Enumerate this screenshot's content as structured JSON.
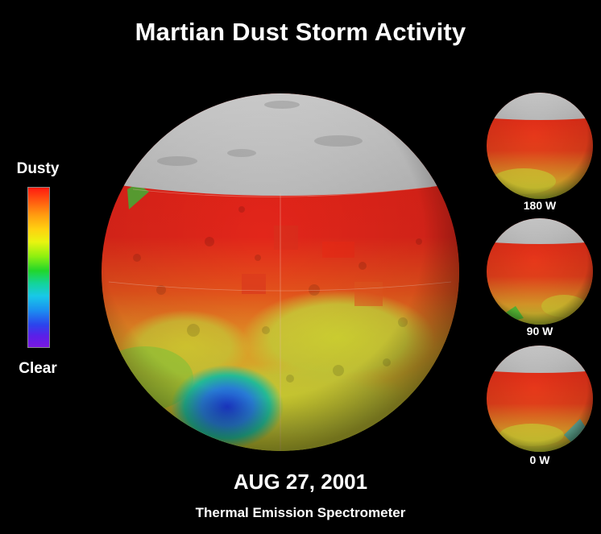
{
  "title": "Martian Dust Storm Activity",
  "legend": {
    "top_label": "Dusty",
    "bottom_label": "Clear",
    "colors": [
      "#ff1a10",
      "#ff9b10",
      "#e9f410",
      "#22d62a",
      "#18c8e8",
      "#2b44ec",
      "#7a18e0"
    ]
  },
  "main_globe": {
    "description_icon": "mars-globe-main"
  },
  "small_globes": [
    {
      "label": "180 W"
    },
    {
      "label": "90 W"
    },
    {
      "label": "0 W"
    }
  ],
  "date": "AUG 27, 2001",
  "instrument": "Thermal Emission Spectrometer"
}
